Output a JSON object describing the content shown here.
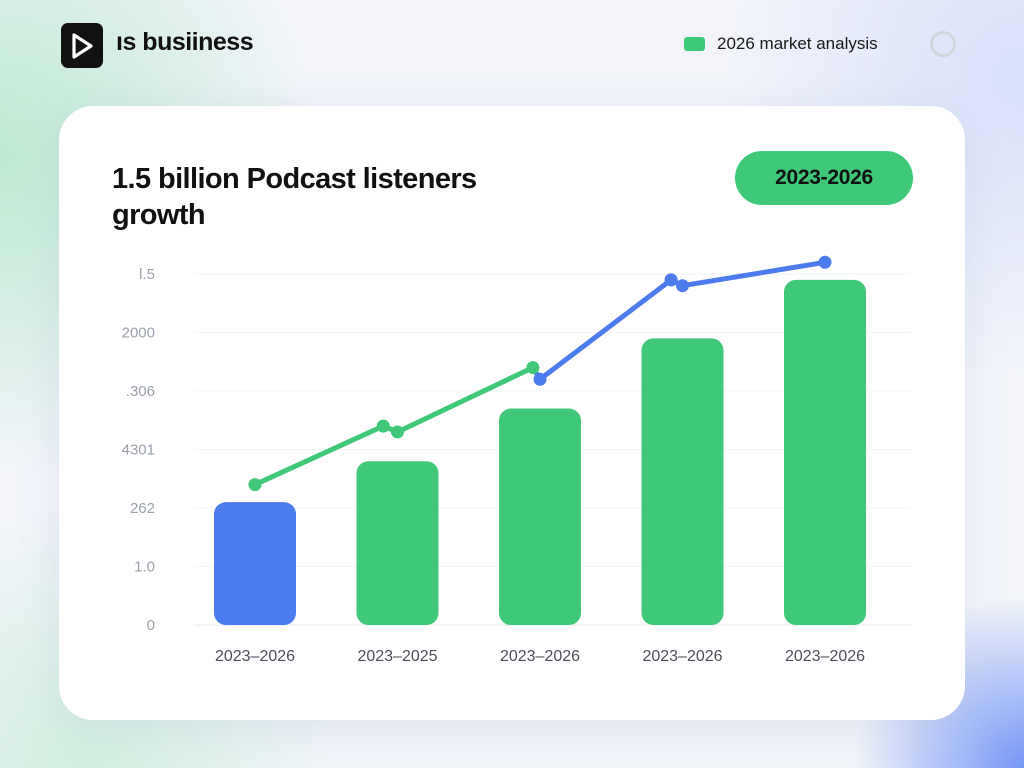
{
  "header": {
    "brand": "ıs busiiness",
    "logo_icon": "play-icon",
    "legend_label": "2026 market analysis",
    "legend_color": "#3ec877",
    "settings_icon": "circle-outline-icon"
  },
  "card": {
    "title": "1.5 billion Podcast listeners growth",
    "range_badge": "2023-2026"
  },
  "colors": {
    "green": "#3ec877",
    "blue": "#4b7bec"
  },
  "chart_data": {
    "type": "bar",
    "title": "1.5 billion Podcast listeners growth",
    "xlabel": "",
    "ylabel": "",
    "ylim": [
      0,
      6
    ],
    "grid": true,
    "y_tick_labels": [
      "0",
      "1.0",
      "262",
      "4301",
      ".306",
      "2000",
      "l.5"
    ],
    "categories": [
      "2023–2026",
      "2023–2025",
      "2023–2026",
      "2023–2026",
      "2023–2026"
    ],
    "series": [
      {
        "name": "listeners",
        "kind": "bar",
        "values": [
          2.1,
          2.8,
          3.7,
          4.9,
          5.9
        ],
        "colors": [
          "#4b7bec",
          "#3ec877",
          "#3ec877",
          "#3ec877",
          "#3ec877"
        ]
      },
      {
        "name": "trend",
        "kind": "line",
        "points": [
          {
            "x": 0.0,
            "y": 2.4,
            "color": "#3ec877"
          },
          {
            "x": 0.9,
            "y": 3.4,
            "color": "#3ec877"
          },
          {
            "x": 1.0,
            "y": 3.3,
            "color": "#3ec877"
          },
          {
            "x": 1.95,
            "y": 4.4,
            "color": "#3ec877"
          },
          {
            "x": 2.0,
            "y": 4.2,
            "color": "#4b7bec"
          },
          {
            "x": 2.92,
            "y": 5.9,
            "color": "#4b7bec"
          },
          {
            "x": 3.0,
            "y": 5.8,
            "color": "#4b7bec"
          },
          {
            "x": 4.0,
            "y": 6.2,
            "color": "#4b7bec"
          }
        ]
      }
    ]
  }
}
